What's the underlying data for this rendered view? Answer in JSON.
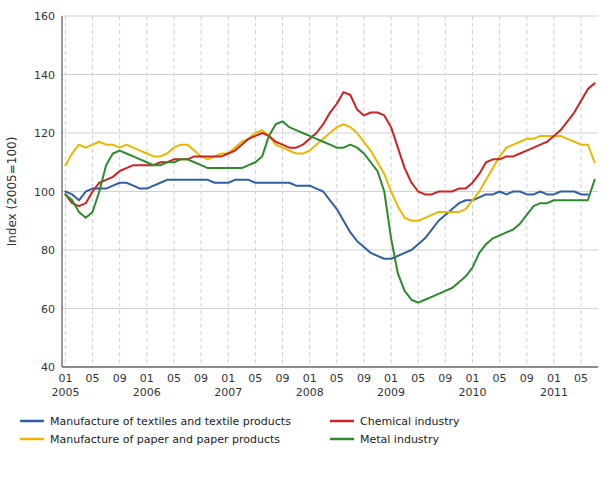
{
  "chart_data": {
    "type": "line",
    "y_label": "Index (2005=100)",
    "categories": [
      "01\n2005",
      null,
      null,
      null,
      "05",
      null,
      null,
      null,
      "09",
      null,
      null,
      null,
      "01\n2006",
      null,
      null,
      null,
      "05",
      null,
      null,
      null,
      "09",
      null,
      null,
      null,
      "01\n2007",
      null,
      null,
      null,
      "05",
      null,
      null,
      null,
      "09",
      null,
      null,
      null,
      "01\n2008",
      null,
      null,
      null,
      "05",
      null,
      null,
      null,
      "09",
      null,
      null,
      null,
      "01\n2009",
      null,
      null,
      null,
      "05",
      null,
      null,
      null,
      "09",
      null,
      null,
      null,
      "01\n2010",
      null,
      null,
      null,
      "05",
      null,
      null,
      null,
      "09",
      null,
      null,
      null,
      "01\n2011",
      null,
      null,
      null,
      "05",
      null,
      null
    ],
    "series": [
      {
        "name": "Manufacture of textiles and textile products",
        "color": "#2e5fa3",
        "values": [
          100,
          99,
          97,
          100,
          101,
          101,
          101,
          102,
          103,
          103,
          102,
          101,
          101,
          102,
          103,
          104,
          104,
          104,
          104,
          104,
          104,
          104,
          103,
          103,
          103,
          104,
          104,
          104,
          103,
          103,
          103,
          103,
          103,
          103,
          102,
          102,
          102,
          101,
          100,
          97,
          94,
          90,
          86,
          83,
          81,
          79,
          78,
          77,
          77,
          78,
          79,
          80,
          82,
          84,
          87,
          90,
          92,
          94,
          96,
          97,
          97,
          98,
          99,
          99,
          100,
          99,
          100,
          100,
          99,
          99,
          100,
          99,
          99,
          100,
          100,
          100,
          99,
          99,
          null
        ]
      },
      {
        "name": "Manufacture of paper and paper products",
        "color": "#e8b800",
        "values": [
          109,
          113,
          116,
          115,
          116,
          117,
          116,
          116,
          115,
          116,
          115,
          114,
          113,
          112,
          112,
          113,
          115,
          116,
          116,
          114,
          112,
          111,
          112,
          113,
          113,
          115,
          117,
          118,
          120,
          121,
          119,
          116,
          115,
          114,
          113,
          113,
          114,
          116,
          118,
          120,
          122,
          123,
          122,
          120,
          117,
          114,
          110,
          106,
          100,
          95,
          91,
          90,
          90,
          91,
          92,
          93,
          93,
          93,
          93,
          94,
          97,
          100,
          104,
          108,
          112,
          115,
          116,
          117,
          118,
          118,
          119,
          119,
          119,
          119,
          118,
          117,
          116,
          116,
          110
        ]
      },
      {
        "name": "Chemical industry",
        "color": "#cc2222",
        "values": [
          99,
          96,
          95,
          96,
          100,
          103,
          104,
          105,
          107,
          108,
          109,
          109,
          109,
          109,
          110,
          110,
          111,
          111,
          111,
          112,
          112,
          112,
          112,
          112,
          113,
          114,
          116,
          118,
          119,
          120,
          119,
          117,
          116,
          115,
          115,
          116,
          118,
          120,
          123,
          127,
          130,
          134,
          133,
          128,
          126,
          127,
          127,
          126,
          122,
          115,
          108,
          103,
          100,
          99,
          99,
          100,
          100,
          100,
          101,
          101,
          103,
          106,
          110,
          111,
          111,
          112,
          112,
          113,
          114,
          115,
          116,
          117,
          119,
          121,
          124,
          127,
          131,
          135,
          137
        ]
      },
      {
        "name": "Metal industry",
        "color": "#2d8a2d",
        "values": [
          99,
          97,
          93,
          91,
          93,
          100,
          109,
          113,
          114,
          113,
          112,
          111,
          110,
          109,
          109,
          110,
          110,
          111,
          111,
          110,
          109,
          108,
          108,
          108,
          108,
          108,
          108,
          109,
          110,
          112,
          119,
          123,
          124,
          122,
          121,
          120,
          119,
          118,
          117,
          116,
          115,
          115,
          116,
          115,
          113,
          110,
          107,
          100,
          84,
          72,
          66,
          63,
          62,
          63,
          64,
          65,
          66,
          67,
          69,
          71,
          74,
          79,
          82,
          84,
          85,
          86,
          87,
          89,
          92,
          95,
          96,
          96,
          97,
          97,
          97,
          97,
          97,
          97,
          104
        ]
      }
    ],
    "ylim": [
      40,
      160
    ],
    "yticks": [
      40,
      60,
      80,
      100,
      120,
      140,
      160
    ],
    "grid": true,
    "legend": "bottom"
  }
}
